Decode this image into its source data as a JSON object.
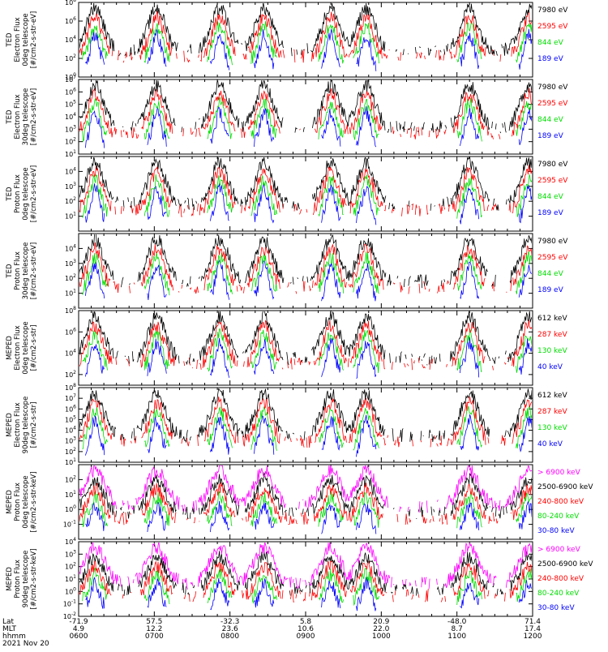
{
  "chart_data": {
    "type": "line",
    "title": "",
    "panels": [
      {
        "ylabel": [
          "TED",
          "Electron Flux",
          "0deg telescope",
          "[#/cm2-s-str-eV]"
        ],
        "ylim_log10": [
          0,
          8
        ],
        "ytick_exponents": [
          0,
          2,
          4,
          6,
          8
        ],
        "series": [
          {
            "name": "7980 eV",
            "color": "#000000"
          },
          {
            "name": "2595 eV",
            "color": "#ff0000"
          },
          {
            "name": "844 eV",
            "color": "#00dd00"
          },
          {
            "name": "189 eV",
            "color": "#0000ff"
          }
        ]
      },
      {
        "ylabel": [
          "TED",
          "Electron Flux",
          "30deg telescope",
          "[#/cm2-s-str-eV]"
        ],
        "ylim_log10": [
          1,
          7
        ],
        "ytick_exponents": [
          1,
          2,
          3,
          4,
          5,
          6,
          7
        ],
        "series": [
          {
            "name": "7980 eV",
            "color": "#000000"
          },
          {
            "name": "2595 eV",
            "color": "#ff0000"
          },
          {
            "name": "844 eV",
            "color": "#00dd00"
          },
          {
            "name": "189 eV",
            "color": "#0000ff"
          }
        ]
      },
      {
        "ylabel": [
          "TED",
          "Proton Flux",
          "0deg telescope",
          "[#/cm2-s-str-eV]"
        ],
        "ylim_log10": [
          0,
          5
        ],
        "ytick_exponents": [
          1,
          2,
          3,
          4
        ],
        "series": [
          {
            "name": "7980 eV",
            "color": "#000000"
          },
          {
            "name": "2595 eV",
            "color": "#ff0000"
          },
          {
            "name": "844 eV",
            "color": "#00dd00"
          },
          {
            "name": "189 eV",
            "color": "#0000ff"
          }
        ]
      },
      {
        "ylabel": [
          "TED",
          "Proton Flux",
          "30deg telescope",
          "[#/cm2-s-str-eV]"
        ],
        "ylim_log10": [
          0,
          5
        ],
        "ytick_exponents": [
          1,
          2,
          3,
          4
        ],
        "series": [
          {
            "name": "7980 eV",
            "color": "#000000"
          },
          {
            "name": "2595 eV",
            "color": "#ff0000"
          },
          {
            "name": "844 eV",
            "color": "#00dd00"
          },
          {
            "name": "189 eV",
            "color": "#0000ff"
          }
        ]
      },
      {
        "ylabel": [
          "MEPED",
          "Electron Flux",
          "0deg telescope",
          "[#/cm2-s-str]"
        ],
        "ylim_log10": [
          1,
          8
        ],
        "ytick_exponents": [
          2,
          4,
          6,
          8
        ],
        "series": [
          {
            "name": "612 keV",
            "color": "#000000"
          },
          {
            "name": "287 keV",
            "color": "#ff0000"
          },
          {
            "name": "130 keV",
            "color": "#00dd00"
          },
          {
            "name": "40 keV",
            "color": "#0000ff"
          }
        ]
      },
      {
        "ylabel": [
          "MEPED",
          "Electron Flux",
          "90deg telescope",
          "[#/cm2-s-str]"
        ],
        "ylim_log10": [
          1,
          8
        ],
        "ytick_exponents": [
          1,
          2,
          3,
          4,
          5,
          6,
          7,
          8
        ],
        "series": [
          {
            "name": "612 keV",
            "color": "#000000"
          },
          {
            "name": "287 keV",
            "color": "#ff0000"
          },
          {
            "name": "130 keV",
            "color": "#00dd00"
          },
          {
            "name": "40 keV",
            "color": "#0000ff"
          }
        ]
      },
      {
        "ylabel": [
          "MEPED",
          "Proton Flux",
          "0deg telescope",
          "[#/cm2-s-str-keV]"
        ],
        "ylim_log10": [
          -2,
          3
        ],
        "ytick_exponents": [
          -1,
          0,
          1,
          2
        ],
        "series": [
          {
            "name": "> 6900 keV",
            "color": "#ff00ff"
          },
          {
            "name": "2500-6900 keV",
            "color": "#000000"
          },
          {
            "name": "240-800 keV",
            "color": "#ff0000"
          },
          {
            "name": "80-240 keV",
            "color": "#00dd00"
          },
          {
            "name": "30-80 keV",
            "color": "#0000ff"
          }
        ]
      },
      {
        "ylabel": [
          "MEPED",
          "Proton Flux",
          "90deg telescope",
          "[#/cm2-s-str-keV]"
        ],
        "ylim_log10": [
          -2,
          4
        ],
        "ytick_exponents": [
          -2,
          -1,
          0,
          1,
          2,
          3,
          4
        ],
        "series": [
          {
            "name": "> 6900 keV",
            "color": "#ff00ff"
          },
          {
            "name": "2500-6900 keV",
            "color": "#000000"
          },
          {
            "name": "240-800 keV",
            "color": "#ff0000"
          },
          {
            "name": "80-240 keV",
            "color": "#00dd00"
          },
          {
            "name": "30-80 keV",
            "color": "#0000ff"
          }
        ]
      }
    ],
    "x_axis": {
      "row_labels": [
        "Lat",
        "MLT",
        "hhmm",
        "2021 Nov 20"
      ],
      "ticks": [
        {
          "lat": "-71.9",
          "mlt": "4.9",
          "hhmm": "0600"
        },
        {
          "lat": "57.5",
          "mlt": "12.2",
          "hhmm": "0700"
        },
        {
          "lat": "-32.3",
          "mlt": "23.6",
          "hhmm": "0800"
        },
        {
          "lat": "5.8",
          "mlt": "10.6",
          "hhmm": "0900"
        },
        {
          "lat": "20.9",
          "mlt": "22.0",
          "hhmm": "1000"
        },
        {
          "lat": "-48.0",
          "mlt": "8.7",
          "hhmm": "1100"
        },
        {
          "lat": "71.4",
          "mlt": "17.4",
          "hhmm": "1200"
        }
      ]
    },
    "passes_hhmm": [
      "0613",
      "0702",
      "0752",
      "0827",
      "0920",
      "0948",
      "1110",
      "1157"
    ]
  }
}
